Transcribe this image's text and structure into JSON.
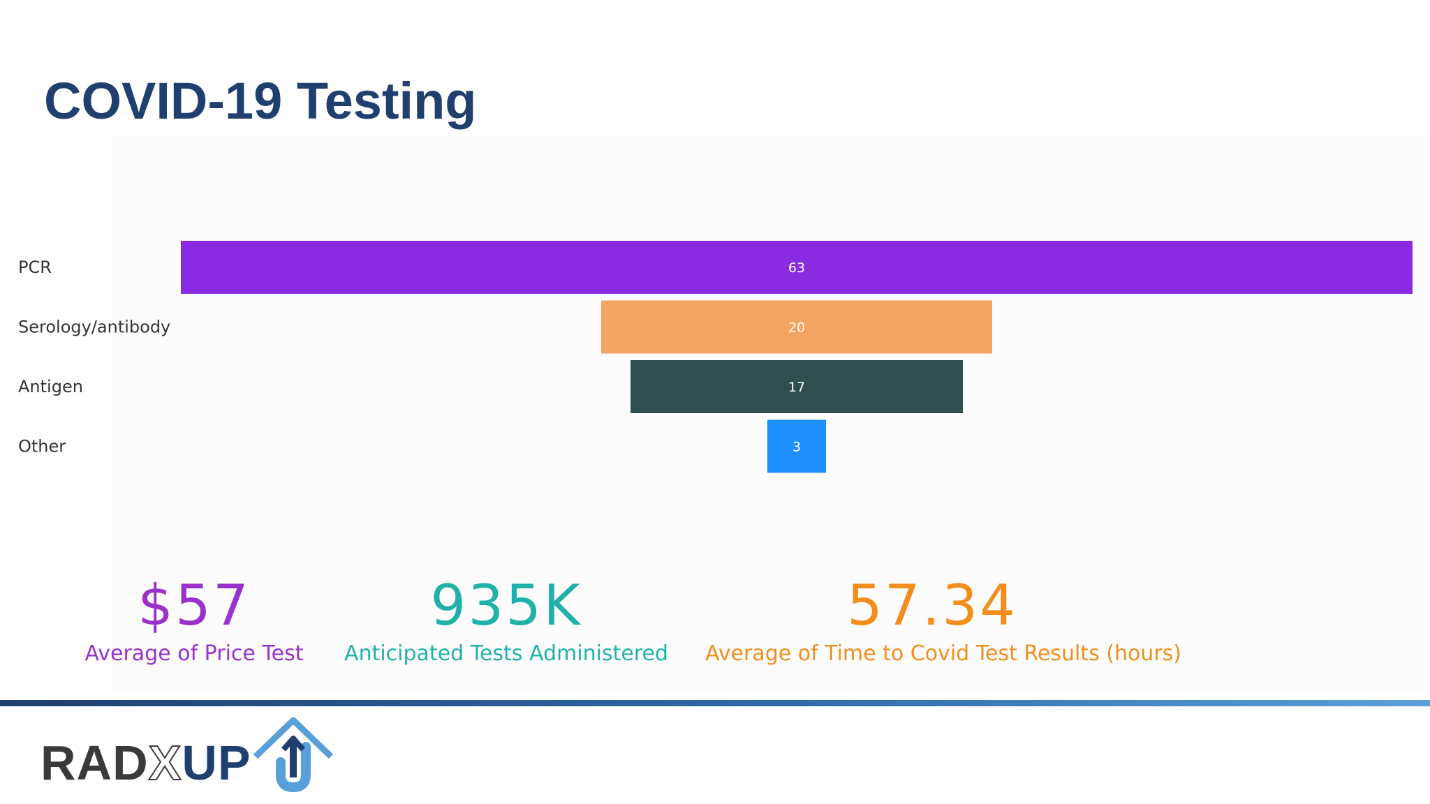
{
  "slide": {
    "title": "COVID-19 Testing"
  },
  "chart_data": {
    "type": "funnel",
    "categories": [
      "PCR",
      "Serology/antibody",
      "Antigen",
      "Other"
    ],
    "values": [
      63,
      20,
      17,
      3
    ],
    "colors": [
      "#8a2be2",
      "#f4a460",
      "#2f4f4f",
      "#1e90ff"
    ]
  },
  "kpis": [
    {
      "value": "$57",
      "label": "Average of Price Test",
      "color": "#9932cc"
    },
    {
      "value": "935K",
      "label": "Anticipated Tests Administered",
      "color": "#20b2aa"
    },
    {
      "value": "57.34",
      "label": "Average of Time to Covid Test Results (hours)",
      "color": "#f28e1c"
    }
  ],
  "logo": {
    "text_left": "RAD",
    "text_x": "X",
    "text_up": "UP"
  }
}
